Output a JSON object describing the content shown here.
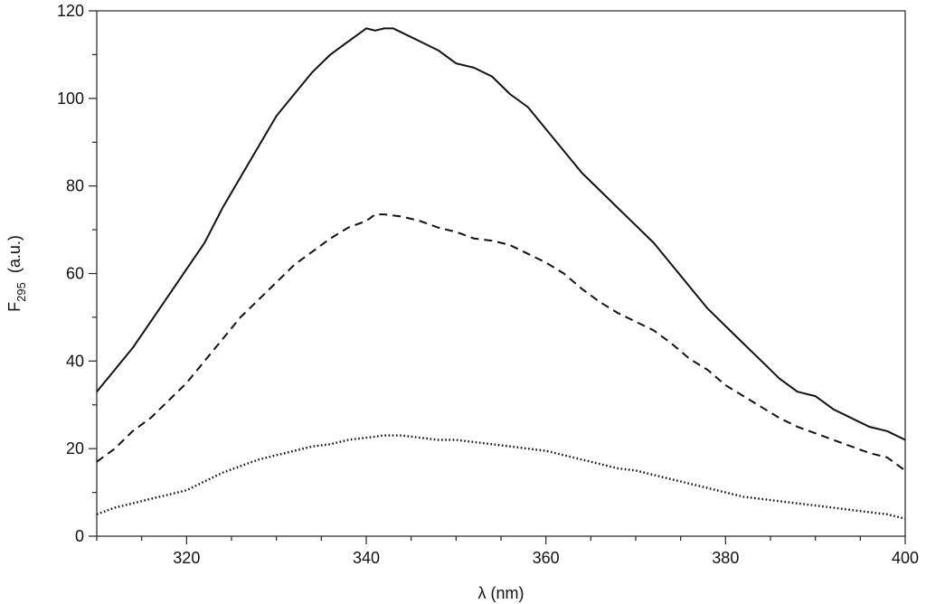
{
  "chart_data": {
    "type": "line",
    "title": "",
    "xlabel": "λ  (nm)",
    "ylabel": {
      "main": "F",
      "subscript": "295",
      "suffix": "  (a.u.)"
    },
    "xlim": [
      310,
      400
    ],
    "ylim": [
      0,
      120
    ],
    "x_ticks": [
      320,
      340,
      360,
      380,
      400
    ],
    "y_ticks": [
      0,
      20,
      40,
      60,
      80,
      100,
      120
    ],
    "grid": false,
    "legend": "none",
    "series": [
      {
        "style": "solid",
        "color": "#111111",
        "x": [
          310,
          312,
          314,
          316,
          318,
          320,
          322,
          324,
          326,
          328,
          330,
          332,
          334,
          336,
          338,
          340,
          341,
          342,
          343,
          344,
          346,
          348,
          350,
          352,
          354,
          356,
          358,
          360,
          362,
          364,
          366,
          368,
          370,
          372,
          374,
          376,
          378,
          380,
          382,
          384,
          386,
          388,
          390,
          392,
          394,
          396,
          398,
          400
        ],
        "y": [
          33,
          38,
          43,
          49,
          55,
          61,
          67,
          75,
          82,
          89,
          96,
          101,
          106,
          110,
          113,
          116,
          115.5,
          116,
          116,
          115,
          113,
          111,
          108,
          107,
          105,
          101,
          98,
          93,
          88,
          83,
          79,
          75,
          71,
          67,
          62,
          57,
          52,
          48,
          44,
          40,
          36,
          33,
          32,
          29,
          27,
          25,
          24,
          22
        ]
      },
      {
        "style": "dashed",
        "color": "#111111",
        "x": [
          310,
          312,
          314,
          316,
          318,
          320,
          322,
          324,
          326,
          328,
          330,
          332,
          334,
          336,
          338,
          340,
          341,
          342,
          344,
          346,
          348,
          350,
          352,
          354,
          356,
          358,
          360,
          362,
          364,
          366,
          368,
          370,
          372,
          374,
          376,
          378,
          380,
          382,
          384,
          386,
          388,
          390,
          392,
          394,
          396,
          398,
          400
        ],
        "y": [
          17,
          20,
          24,
          27,
          31,
          35,
          40,
          45,
          50,
          54,
          58,
          62,
          65,
          68,
          70.5,
          72,
          73.5,
          73.5,
          73,
          72,
          70.5,
          69.5,
          68,
          67.5,
          66.5,
          64.5,
          62.5,
          60,
          56.5,
          53.5,
          51,
          49,
          47,
          44,
          40.5,
          38,
          34.5,
          32,
          29.5,
          27,
          25,
          23.5,
          22,
          20.5,
          19,
          18,
          15
        ]
      },
      {
        "style": "dotted",
        "color": "#111111",
        "x": [
          310,
          312,
          314,
          316,
          318,
          320,
          322,
          324,
          326,
          328,
          330,
          332,
          334,
          336,
          338,
          340,
          342,
          344,
          346,
          348,
          350,
          352,
          354,
          356,
          358,
          360,
          362,
          364,
          366,
          368,
          370,
          372,
          374,
          376,
          378,
          380,
          382,
          384,
          386,
          388,
          390,
          392,
          394,
          396,
          398,
          400
        ],
        "y": [
          5,
          6.5,
          7.5,
          8.5,
          9.5,
          10.5,
          12.5,
          14.5,
          16,
          17.5,
          18.5,
          19.5,
          20.5,
          21,
          22,
          22.5,
          23,
          23,
          22.5,
          22,
          22,
          21.5,
          21,
          20.5,
          20,
          19.5,
          18.5,
          17.5,
          16.5,
          15.5,
          15,
          14,
          13,
          12,
          11,
          10,
          9,
          8.5,
          8,
          7.5,
          7,
          6.5,
          6,
          5.5,
          5,
          4
        ]
      }
    ]
  }
}
